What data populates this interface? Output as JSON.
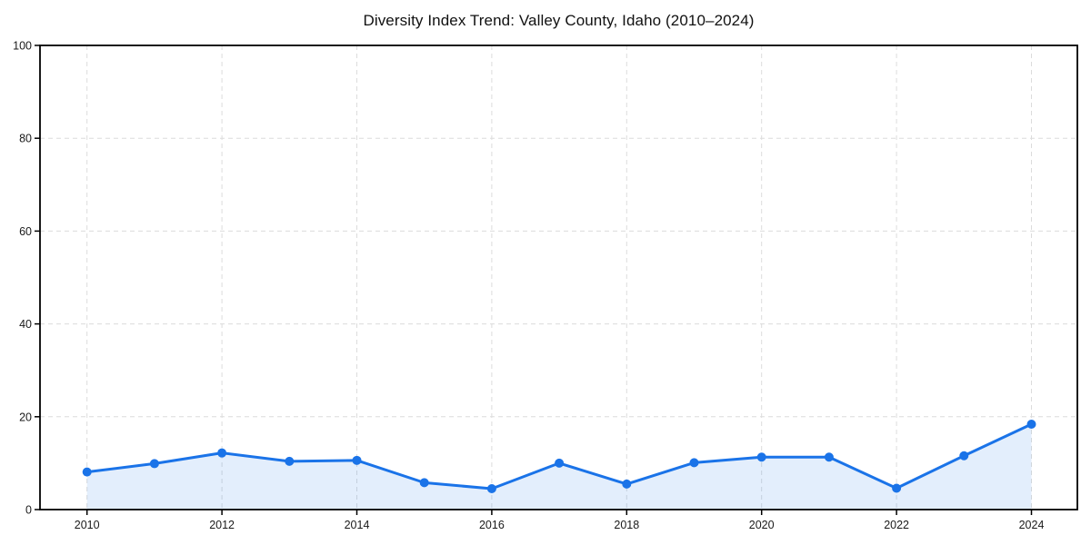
{
  "chart_data": {
    "type": "line",
    "title": "Diversity Index Trend: Valley County, Idaho (2010–2024)",
    "x": [
      2010,
      2011,
      2012,
      2013,
      2014,
      2015,
      2016,
      2017,
      2018,
      2019,
      2020,
      2021,
      2022,
      2023,
      2024
    ],
    "values": [
      8.1,
      9.9,
      12.2,
      10.4,
      10.6,
      5.8,
      4.5,
      10.0,
      5.5,
      10.1,
      11.3,
      11.3,
      4.6,
      11.6,
      18.4
    ],
    "xlabel": "",
    "ylabel": "",
    "ylim": [
      0,
      100
    ],
    "yticks": [
      0,
      20,
      40,
      60,
      80,
      100
    ],
    "xticks": [
      2010,
      2012,
      2014,
      2016,
      2018,
      2020,
      2022,
      2024
    ],
    "grid": true,
    "legend": null,
    "area_fill": true,
    "marker": "circle",
    "colors": {
      "line": "#1a73e8",
      "fill": "rgba(26,115,232,0.12)",
      "grid": "#dcdcdc",
      "spine": "#000000",
      "tick_label": "#1a1a1a",
      "title": "#111111"
    }
  }
}
